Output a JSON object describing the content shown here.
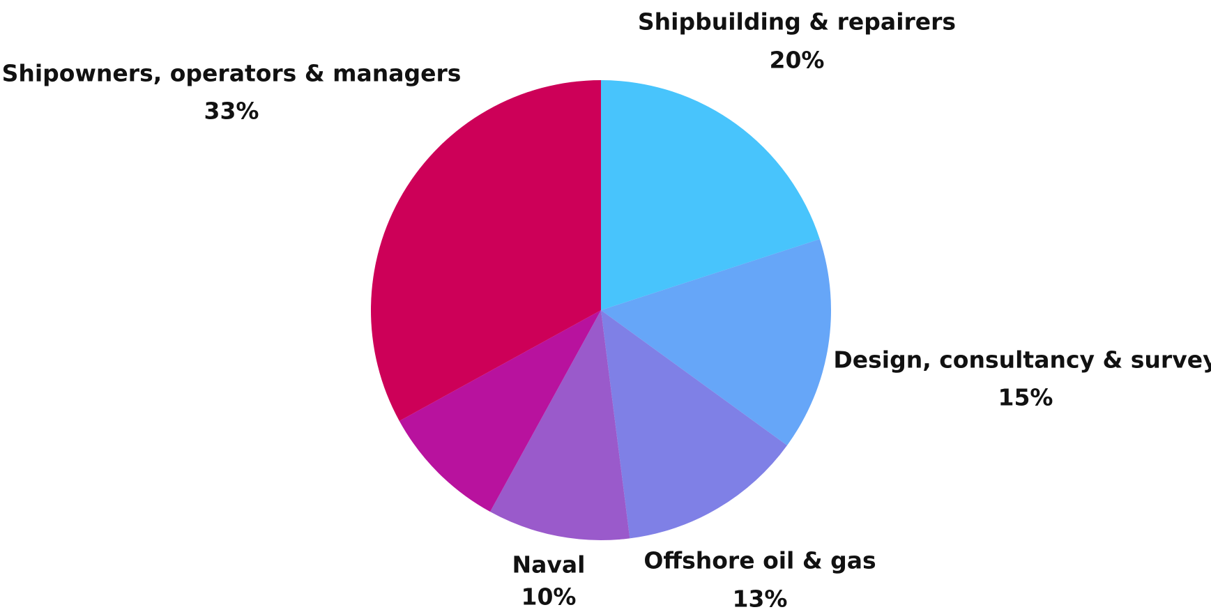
{
  "chart_data": {
    "type": "pie",
    "categories": [
      "Shipbuilding & repairers",
      "Design, consultancy & survey",
      "Offshore oil & gas",
      "Naval",
      null,
      "Shipowners, operators & managers"
    ],
    "values": [
      20,
      15,
      13,
      10,
      9,
      33
    ],
    "value_labels": [
      "20%",
      "15%",
      "13%",
      "10%",
      null,
      "33%"
    ],
    "colors": [
      "#48c4fc",
      "#66a6f8",
      "#7f80e6",
      "#9a5acb",
      "#b8129e",
      "#cd0058"
    ],
    "start_angle": 0,
    "direction": "clockwise"
  }
}
